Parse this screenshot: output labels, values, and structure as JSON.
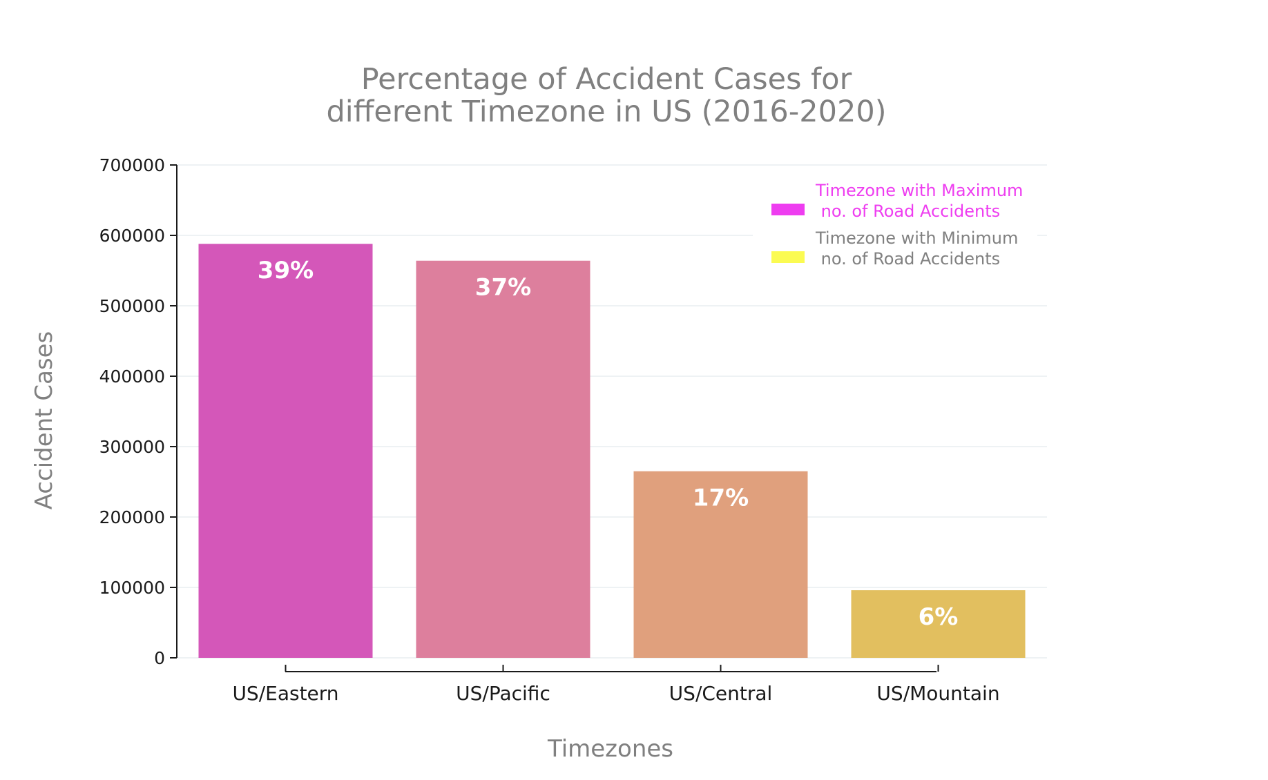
{
  "chart_data": {
    "type": "bar",
    "title": [
      "Percentage of Accident Cases for",
      "different Timezone in US (2016-2020)"
    ],
    "xlabel": "Timezones",
    "ylabel": "Accident Cases",
    "categories": [
      "US/Eastern",
      "US/Pacific",
      "US/Central",
      "US/Mountain"
    ],
    "values": [
      588000,
      564000,
      265000,
      96000
    ],
    "data_labels": [
      "39%",
      "37%",
      "17%",
      "6%"
    ],
    "bar_colors": [
      "#d457b9",
      "#dd7f9d",
      "#e0a07d",
      "#e2bf5f"
    ],
    "ylim": [
      0,
      700000
    ],
    "yticks": [
      "0",
      "100000",
      "200000",
      "300000",
      "400000",
      "500000",
      "600000",
      "700000"
    ],
    "grid": true,
    "legend": {
      "placement": "top-right",
      "entries": [
        {
          "lines": [
            "Timezone with Maximum",
            " no. of Road Accidents"
          ],
          "color": "#ee3df0",
          "text_color": "#ee3df0"
        },
        {
          "lines": [
            "Timezone with Minimum",
            " no. of Road Accidents"
          ],
          "color": "#fbfb52",
          "text_color": "#808080"
        }
      ]
    }
  }
}
